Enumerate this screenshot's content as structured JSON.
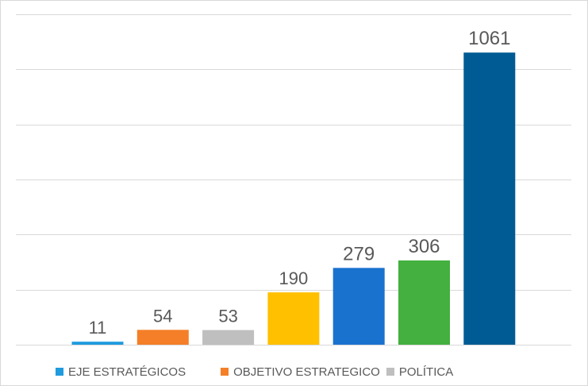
{
  "chart_data": {
    "type": "bar",
    "title": "",
    "xlabel": "",
    "ylabel": "",
    "ylim": [
      0,
      1200
    ],
    "grid": true,
    "legend_position": "bottom-left",
    "bars": [
      {
        "value": 11,
        "label": "11",
        "color": "#1f9bde"
      },
      {
        "value": 54,
        "label": "54",
        "color": "#f47f28"
      },
      {
        "value": 53,
        "label": "53",
        "color": "#bfbfbf"
      },
      {
        "value": 190,
        "label": "190",
        "color": "#ffc000"
      },
      {
        "value": 279,
        "label": "279",
        "color": "#1a72cf"
      },
      {
        "value": 306,
        "label": "306",
        "color": "#43b040"
      },
      {
        "value": 1061,
        "label": "1061",
        "color": "#005b94"
      }
    ],
    "legend": [
      {
        "name": "EJE ESTRATÉGICOS",
        "color": "#1f9bde"
      },
      {
        "name": "OBJETIVO ESTRATEGICO",
        "color": "#f47f28"
      },
      {
        "name": "POLÍTICA",
        "color": "#bfbfbf"
      }
    ]
  }
}
